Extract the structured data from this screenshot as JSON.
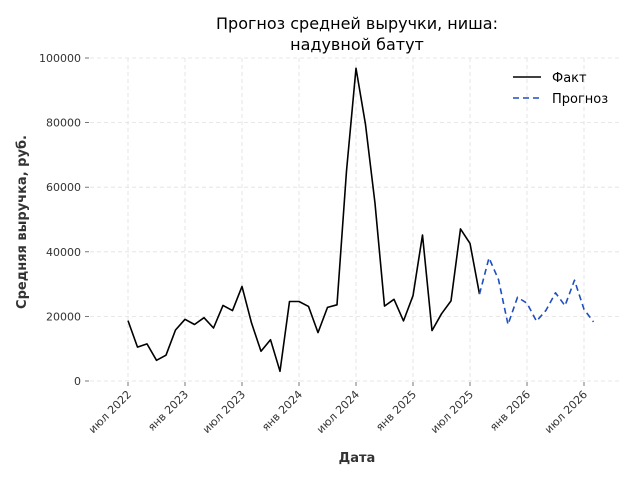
{
  "chart_data": {
    "type": "line",
    "title_lines": [
      "Прогноз средней выручки, ниша:",
      "надувной батут"
    ],
    "xlabel": "Дата",
    "ylabel": "Средняя выручка, руб.",
    "ylim": [
      0,
      100000
    ],
    "yticks": [
      0,
      20000,
      40000,
      60000,
      80000,
      100000
    ],
    "ytick_labels": [
      "0",
      "20000",
      "40000",
      "60000",
      "80000",
      "100000"
    ],
    "xticks": [
      "2022-07",
      "2023-01",
      "2023-07",
      "2024-01",
      "2024-07",
      "2025-01",
      "2025-07",
      "2026-01",
      "2026-07"
    ],
    "xtick_labels": [
      "июл 2022",
      "янв 2023",
      "июл 2023",
      "янв 2024",
      "июл 2024",
      "янв 2025",
      "июл 2025",
      "янв 2026",
      "июл 2026"
    ],
    "xlim": [
      "2022-03",
      "2026-11"
    ],
    "grid": true,
    "legend_position": "top-right",
    "series": [
      {
        "name": "Факт",
        "color": "#000000",
        "style": "solid",
        "x": [
          "2022-07",
          "2022-08",
          "2022-09",
          "2022-10",
          "2022-11",
          "2022-12",
          "2023-01",
          "2023-02",
          "2023-03",
          "2023-04",
          "2023-05",
          "2023-06",
          "2023-07",
          "2023-08",
          "2023-09",
          "2023-10",
          "2023-11",
          "2023-12",
          "2024-01",
          "2024-02",
          "2024-03",
          "2024-04",
          "2024-05",
          "2024-06",
          "2024-07",
          "2024-08",
          "2024-09",
          "2024-10",
          "2024-11",
          "2024-12",
          "2025-01",
          "2025-02",
          "2025-03",
          "2025-04",
          "2025-05",
          "2025-06",
          "2025-07",
          "2025-08"
        ],
        "values": [
          18700,
          10500,
          11500,
          6400,
          8000,
          15800,
          19100,
          17500,
          19600,
          16400,
          23400,
          21800,
          29300,
          18000,
          9200,
          12800,
          3000,
          24600,
          24600,
          23100,
          15000,
          22800,
          23600,
          65000,
          96800,
          79400,
          55000,
          23200,
          25300,
          18600,
          26400,
          45200,
          15600,
          20800,
          24800,
          47100,
          42600,
          26900
        ]
      },
      {
        "name": "Прогноз",
        "color": "#1f4fbf",
        "style": "dashed",
        "x": [
          "2025-08",
          "2025-09",
          "2025-10",
          "2025-11",
          "2025-12",
          "2026-01",
          "2026-02",
          "2026-03",
          "2026-04",
          "2026-05",
          "2026-06",
          "2026-07",
          "2026-08"
        ],
        "values": [
          26900,
          38100,
          31400,
          17500,
          25900,
          24100,
          18500,
          21900,
          27300,
          23300,
          31200,
          22200,
          18300
        ]
      }
    ]
  }
}
